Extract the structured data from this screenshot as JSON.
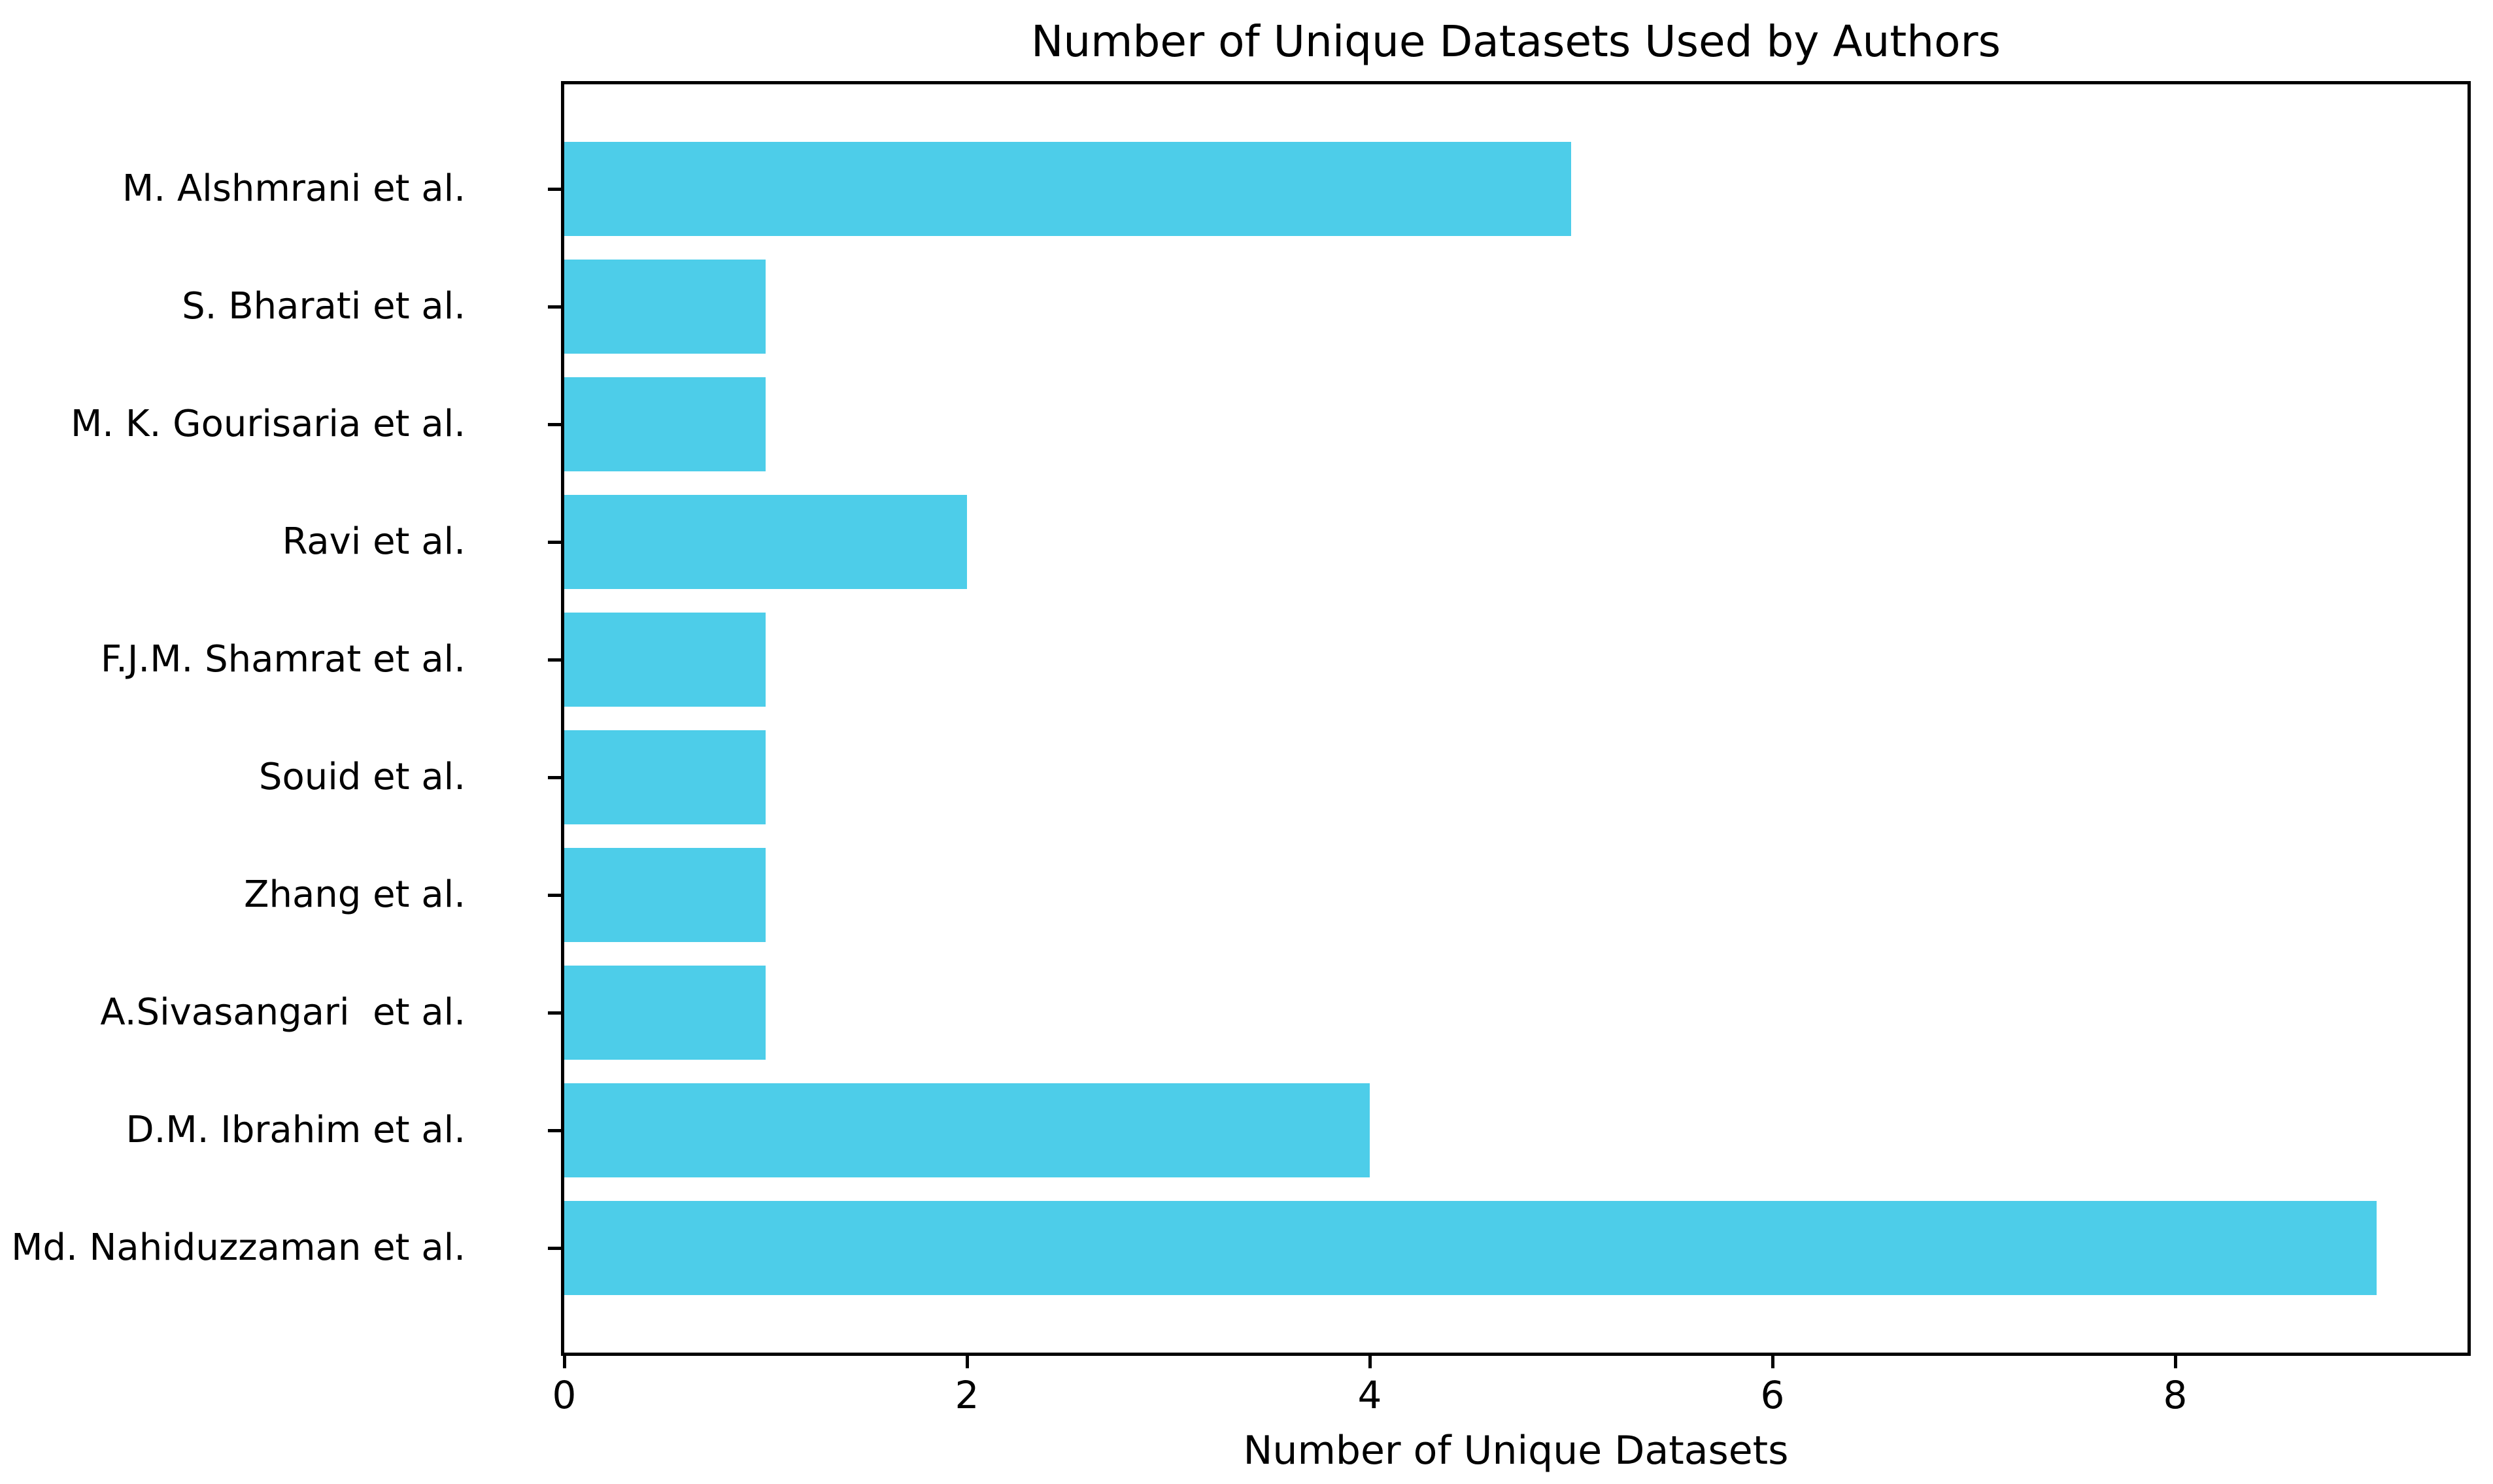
{
  "colors": {
    "bar": "#4DCDE9",
    "axis": "#000000",
    "text": "#000000",
    "background": "#FFFFFF"
  },
  "chart_data": {
    "type": "bar",
    "orientation": "horizontal",
    "title": "Number of Unique Datasets Used by Authors",
    "xlabel": "Number of Unique Datasets",
    "ylabel": "",
    "categories": [
      "M. Alshmrani et al.",
      "S. Bharati et al.",
      "M. K. Gourisaria et al.",
      "Ravi et al.",
      "F.J.M. Shamrat et al.",
      "Souid et al.",
      "Zhang et al.",
      "A.Sivasangari  et al.",
      "D.M. Ibrahim et al.",
      "Md. Nahiduzzaman et al."
    ],
    "values": [
      5,
      1,
      1,
      2,
      1,
      1,
      1,
      1,
      4,
      9
    ],
    "x_ticks": [
      "0",
      "2",
      "4",
      "6",
      "8"
    ],
    "x_tick_values": [
      0,
      2,
      4,
      6,
      8
    ],
    "xlim": [
      0,
      9.45
    ],
    "bar_height_fraction": 0.8,
    "grid": false,
    "legend": null,
    "bar_color": "#4DCDE9"
  }
}
